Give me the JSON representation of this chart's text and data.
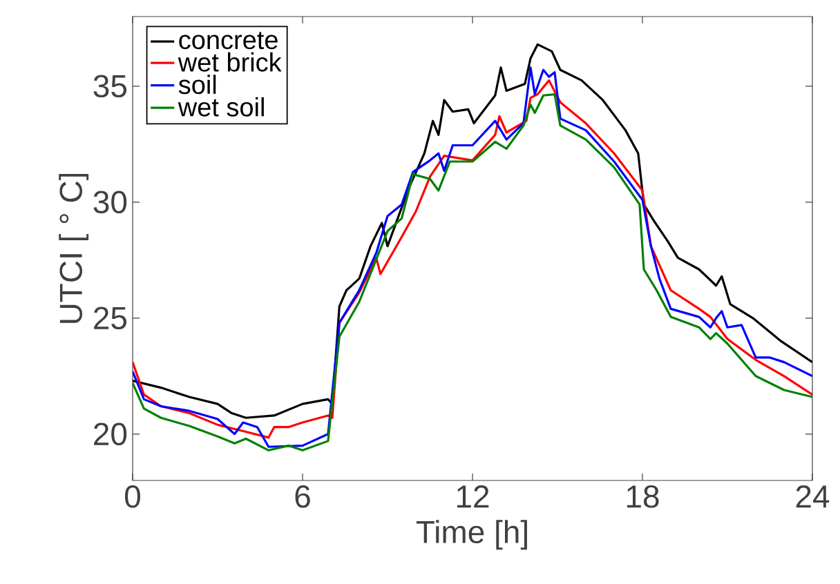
{
  "chart_data": {
    "type": "line",
    "xlabel": "Time [h]",
    "ylabel": "UTCI [ ° C]",
    "xlim": [
      0,
      24
    ],
    "ylim": [
      18,
      38
    ],
    "xticks": [
      0,
      6,
      12,
      18,
      24
    ],
    "yticks": [
      20,
      25,
      30,
      35
    ],
    "grid": false,
    "legend": "top left",
    "line_style": "solid",
    "marker": "none",
    "series": [
      {
        "name": "concrete",
        "color": "#000000",
        "x": [
          0,
          1,
          2,
          3,
          3.5,
          4,
          5,
          6,
          6.9,
          7.05,
          7.3,
          7.55,
          8,
          8.4,
          8.8,
          9,
          9.75,
          10.3,
          10.6,
          10.8,
          11,
          11.3,
          11.85,
          12.05,
          12.8,
          13,
          13.2,
          13.85,
          14.05,
          14.3,
          14.8,
          15.1,
          15.85,
          16.6,
          17.4,
          17.85,
          18.05,
          18.4,
          18.9,
          19.25,
          20,
          20.6,
          20.8,
          21.1,
          21.9,
          22.9,
          24
        ],
        "values": [
          22.3,
          22.0,
          21.6,
          21.3,
          20.9,
          20.7,
          20.8,
          21.3,
          21.5,
          21.3,
          25.5,
          26.2,
          26.7,
          28.1,
          29.1,
          28.1,
          30.6,
          32.1,
          33.5,
          32.9,
          34.4,
          33.9,
          34.0,
          33.4,
          34.6,
          35.8,
          34.8,
          35.1,
          36.2,
          36.8,
          36.5,
          35.7,
          35.25,
          34.4,
          33.1,
          32.1,
          29.9,
          29.2,
          28.3,
          27.6,
          27.1,
          26.4,
          26.8,
          25.6,
          25.0,
          24.0,
          23.1
        ]
      },
      {
        "name": "wet brick",
        "color": "#ff0000",
        "x": [
          0,
          0.4,
          1,
          2,
          3,
          4,
          4.8,
          5,
          5.5,
          6,
          6.9,
          7.05,
          7.3,
          8,
          8.6,
          8.75,
          9.5,
          10,
          10.5,
          11,
          12,
          12.8,
          12.95,
          13.2,
          13.9,
          14.05,
          14.3,
          14.7,
          15.1,
          16,
          17,
          18,
          18.3,
          19,
          20,
          20.4,
          21,
          22,
          23,
          24
        ],
        "values": [
          23.1,
          21.7,
          21.2,
          20.9,
          20.4,
          20.1,
          19.85,
          20.3,
          20.3,
          20.5,
          20.8,
          20.7,
          24.8,
          26.1,
          27.6,
          26.9,
          28.5,
          29.6,
          31.1,
          32.0,
          31.8,
          32.9,
          33.7,
          33.0,
          33.5,
          34.5,
          34.65,
          35.25,
          34.3,
          33.4,
          32.1,
          30.5,
          28.1,
          26.2,
          25.4,
          25.05,
          24.1,
          23.2,
          22.5,
          21.7
        ]
      },
      {
        "name": "soil",
        "color": "#0000ff",
        "x": [
          0,
          0.4,
          1,
          2,
          3,
          3.6,
          3.9,
          4.4,
          4.8,
          6,
          6.9,
          7.3,
          8,
          8.6,
          9,
          9.5,
          9.9,
          10.5,
          10.8,
          11,
          11.3,
          12,
          12.8,
          13.2,
          13.8,
          14.05,
          14.2,
          14.5,
          14.7,
          14.9,
          15.1,
          16,
          17,
          18,
          18.3,
          18.6,
          19,
          20,
          20.4,
          20.6,
          20.8,
          21,
          21.5,
          22,
          22.5,
          23,
          24
        ],
        "values": [
          22.7,
          21.5,
          21.2,
          21.0,
          20.65,
          20.0,
          20.5,
          20.3,
          19.45,
          19.5,
          20.0,
          24.8,
          26.2,
          27.8,
          29.4,
          29.9,
          31.3,
          31.8,
          32.1,
          31.35,
          32.45,
          32.45,
          33.5,
          32.7,
          33.4,
          35.8,
          34.65,
          35.7,
          35.4,
          35.6,
          33.6,
          33.1,
          31.75,
          30.1,
          28.1,
          26.7,
          25.4,
          25.05,
          24.6,
          25.0,
          25.3,
          24.6,
          24.7,
          23.3,
          23.3,
          23.1,
          22.5
        ]
      },
      {
        "name": "wet soil",
        "color": "#008000",
        "x": [
          0,
          0.4,
          1,
          2,
          3,
          3.6,
          4,
          4.8,
          5.5,
          6,
          6.9,
          7.3,
          8,
          9,
          9.5,
          9.9,
          10.5,
          10.8,
          11.2,
          12,
          12.8,
          13.2,
          13.8,
          14.05,
          14.2,
          14.5,
          14.9,
          15.1,
          16,
          17,
          17.9,
          18.05,
          18.5,
          19,
          20,
          20.4,
          20.6,
          21,
          22,
          23,
          24
        ],
        "values": [
          22.2,
          21.1,
          20.7,
          20.35,
          19.9,
          19.6,
          19.8,
          19.3,
          19.5,
          19.3,
          19.7,
          24.2,
          25.7,
          28.75,
          29.3,
          31.2,
          31.0,
          30.5,
          31.75,
          31.75,
          32.6,
          32.3,
          33.3,
          34.2,
          33.85,
          34.6,
          34.65,
          33.3,
          32.7,
          31.5,
          29.9,
          27.1,
          26.2,
          25.05,
          24.6,
          24.1,
          24.35,
          23.9,
          22.5,
          21.9,
          21.6
        ]
      }
    ]
  }
}
